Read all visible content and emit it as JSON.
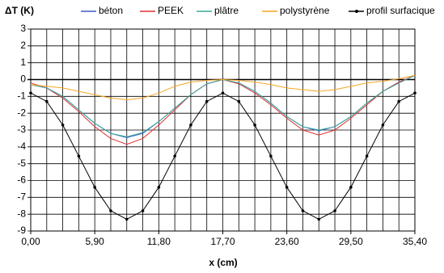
{
  "chart_data": {
    "type": "line",
    "title": "ΔT (K)",
    "xlabel": "x (cm)",
    "x": [
      0,
      1.475,
      2.95,
      4.425,
      5.9,
      7.375,
      8.85,
      10.325,
      11.8,
      13.275,
      14.75,
      16.225,
      17.7,
      19.175,
      20.65,
      22.125,
      23.6,
      25.075,
      26.55,
      28.025,
      29.5,
      30.975,
      32.45,
      33.925,
      35.4
    ],
    "series": [
      {
        "name": "béton",
        "color": "#3b5bc9",
        "values": [
          -0.3,
          -0.5,
          -1.0,
          -1.8,
          -2.6,
          -3.2,
          -3.45,
          -3.2,
          -2.5,
          -1.7,
          -0.9,
          -0.25,
          0,
          -0.2,
          -0.7,
          -1.4,
          -2.2,
          -2.8,
          -3.05,
          -2.8,
          -2.2,
          -1.4,
          -0.7,
          -0.2,
          0.25
        ]
      },
      {
        "name": "PEEK",
        "color": "#e03030",
        "values": [
          -0.2,
          -0.5,
          -1.1,
          -1.9,
          -2.8,
          -3.5,
          -3.85,
          -3.5,
          -2.7,
          -1.8,
          -0.9,
          -0.25,
          0,
          -0.25,
          -0.8,
          -1.5,
          -2.3,
          -3.0,
          -3.3,
          -3.0,
          -2.3,
          -1.5,
          -0.7,
          -0.15,
          0.25
        ]
      },
      {
        "name": "plâtre",
        "color": "#3aa89b",
        "values": [
          -0.3,
          -0.5,
          -1.0,
          -1.8,
          -2.6,
          -3.2,
          -3.4,
          -3.15,
          -2.5,
          -1.7,
          -0.9,
          -0.25,
          0,
          -0.2,
          -0.7,
          -1.4,
          -2.2,
          -2.8,
          -3.0,
          -2.8,
          -2.2,
          -1.4,
          -0.7,
          -0.2,
          0.25
        ]
      },
      {
        "name": "polystyrène",
        "color": "#f5a623",
        "values": [
          -0.3,
          -0.4,
          -0.5,
          -0.7,
          -0.9,
          -1.1,
          -1.2,
          -1.1,
          -0.8,
          -0.4,
          -0.15,
          -0.05,
          0,
          -0.05,
          -0.15,
          -0.3,
          -0.5,
          -0.6,
          -0.7,
          -0.6,
          -0.4,
          -0.2,
          -0.1,
          0.05,
          0.25
        ]
      },
      {
        "name": "profil surfacique",
        "color": "#000000",
        "marker": true,
        "values": [
          -0.8,
          -1.3,
          -2.7,
          -4.55,
          -6.4,
          -7.8,
          -8.3,
          -7.8,
          -6.4,
          -4.55,
          -2.7,
          -1.3,
          -0.8,
          -1.3,
          -2.7,
          -4.55,
          -6.4,
          -7.8,
          -8.3,
          -7.8,
          -6.4,
          -4.55,
          -2.7,
          -1.3,
          -0.8
        ]
      }
    ],
    "xlim": [
      0,
      35.4
    ],
    "ylim": [
      -9,
      3
    ],
    "xticks": [
      {
        "value": 0,
        "label": "0,00"
      },
      {
        "value": 5.9,
        "label": "5,90"
      },
      {
        "value": 11.8,
        "label": "11,80"
      },
      {
        "value": 17.7,
        "label": "17,70"
      },
      {
        "value": 23.6,
        "label": "23,60"
      },
      {
        "value": 29.5,
        "label": "29,50"
      },
      {
        "value": 35.4,
        "label": "35,40"
      }
    ],
    "xminorticks": [
      0,
      1.475,
      2.95,
      4.425,
      5.9,
      7.375,
      8.85,
      10.325,
      11.8,
      13.275,
      14.75,
      16.225,
      17.7,
      19.175,
      20.65,
      22.125,
      23.6,
      25.075,
      26.55,
      28.025,
      29.5,
      30.975,
      32.45,
      33.925,
      35.4
    ],
    "yticks": [
      -9,
      -8,
      -7,
      -6,
      -5,
      -4,
      -3,
      -2,
      -1,
      0,
      1,
      2,
      3
    ],
    "grid": true
  }
}
